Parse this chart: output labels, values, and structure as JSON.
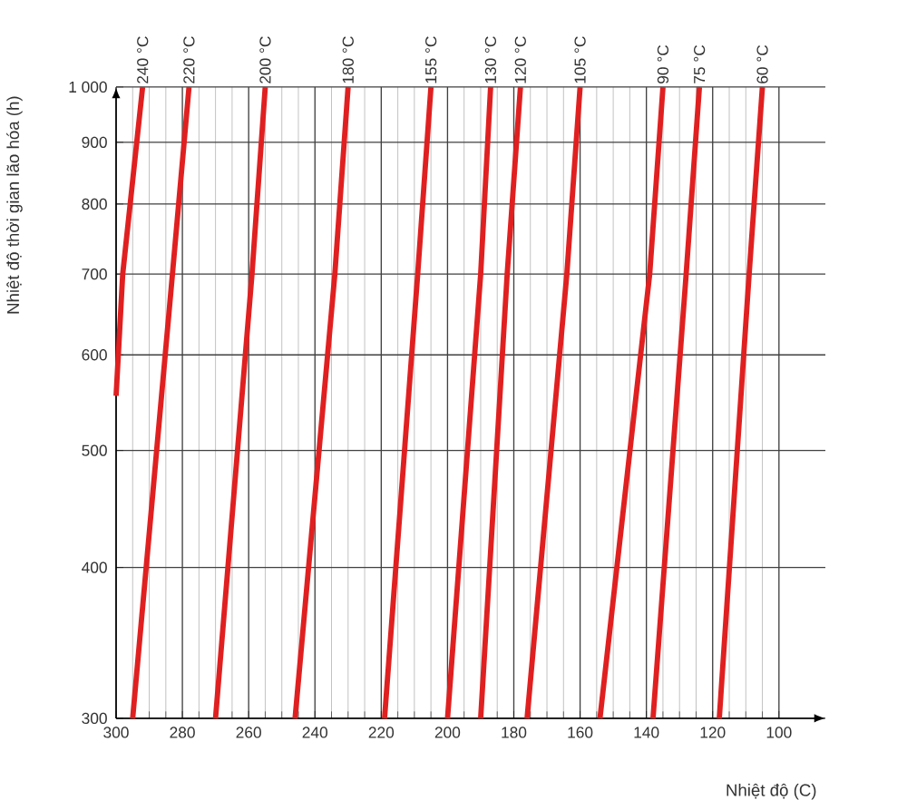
{
  "chart_data": {
    "type": "line",
    "xlabel": "Nhiệt độ (C)",
    "ylabel": "Nhiệt độ thời gian lão hóa (h)",
    "log": "y",
    "grid": true,
    "legend": false,
    "line_style": "solid",
    "marker": "none",
    "xlim": [
      300,
      100
    ],
    "ylim": [
      300,
      1000
    ],
    "xticks": [
      300,
      280,
      260,
      240,
      220,
      200,
      180,
      160,
      140,
      120,
      100
    ],
    "yticks": [
      300,
      400,
      500,
      600,
      700,
      800,
      900,
      {
        "value": 1000,
        "label": "1 000"
      }
    ],
    "series": [
      {
        "name": "240 °C",
        "color": "#e02020",
        "x": [
          300,
          298,
          292
        ],
        "values": [
          555,
          700,
          1000
        ]
      },
      {
        "name": "220 °C",
        "color": "#e02020",
        "x": [
          295,
          283,
          278
        ],
        "values": [
          300,
          700,
          1000
        ]
      },
      {
        "name": "200 °C",
        "color": "#e02020",
        "x": [
          270,
          259,
          255
        ],
        "values": [
          300,
          700,
          1000
        ]
      },
      {
        "name": "180 °C",
        "color": "#e02020",
        "x": [
          246,
          234,
          230
        ],
        "values": [
          300,
          700,
          1000
        ]
      },
      {
        "name": "155 °C",
        "color": "#e02020",
        "x": [
          219,
          209,
          205
        ],
        "values": [
          300,
          700,
          1000
        ]
      },
      {
        "name": "130 °C",
        "color": "#e02020",
        "x": [
          200,
          190,
          187
        ],
        "values": [
          300,
          700,
          1000
        ]
      },
      {
        "name": "120 °C",
        "color": "#e02020",
        "x": [
          190,
          182,
          178
        ],
        "values": [
          300,
          700,
          1000
        ]
      },
      {
        "name": "105 °C",
        "color": "#e02020",
        "x": [
          176,
          164,
          160
        ],
        "values": [
          300,
          700,
          1000
        ]
      },
      {
        "name": "90 °C",
        "color": "#e02020",
        "x": [
          154,
          139,
          135
        ],
        "values": [
          300,
          700,
          1000
        ]
      },
      {
        "name": "75 °C",
        "color": "#e02020",
        "x": [
          138,
          128,
          124
        ],
        "values": [
          300,
          700,
          1000
        ]
      },
      {
        "name": "60 °C",
        "color": "#e02020",
        "x": [
          118,
          109,
          105
        ],
        "values": [
          300,
          700,
          1000
        ]
      }
    ]
  }
}
